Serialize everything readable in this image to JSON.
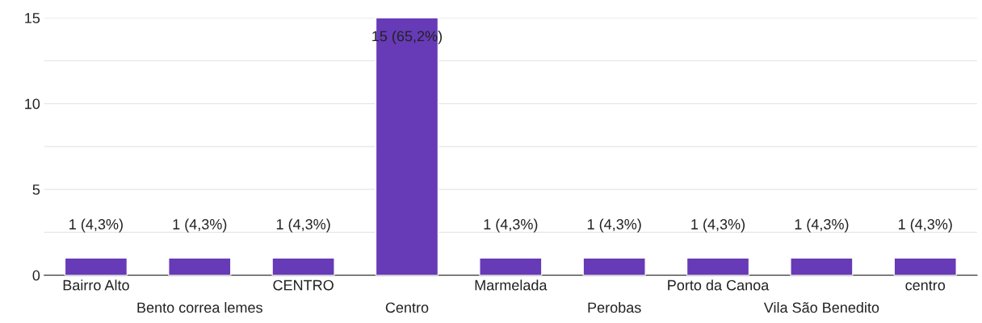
{
  "chart_data": {
    "type": "bar",
    "categories": [
      "Bairro Alto",
      "Bento correa lemes",
      "CENTRO",
      "Centro",
      "Marmelada",
      "Perobas",
      "Porto da Canoa",
      "Vila São Benedito",
      "centro"
    ],
    "values": [
      1,
      1,
      1,
      15,
      1,
      1,
      1,
      1,
      1
    ],
    "value_labels": [
      "1 (4,3%)",
      "1 (4,3%)",
      "1 (4,3%)",
      "15 (65,2%)",
      "1 (4,3%)",
      "1 (4,3%)",
      "1 (4,3%)",
      "1 (4,3%)",
      "1 (4,3%)"
    ],
    "color": "#673ab7",
    "ylim": [
      0,
      15
    ],
    "yticks": [
      0,
      {
        "value": 2.5,
        "label": null
      },
      5,
      {
        "value": 7.5,
        "label": null
      },
      10,
      {
        "value": 12.5,
        "label": null
      },
      15
    ],
    "grid": "y"
  }
}
